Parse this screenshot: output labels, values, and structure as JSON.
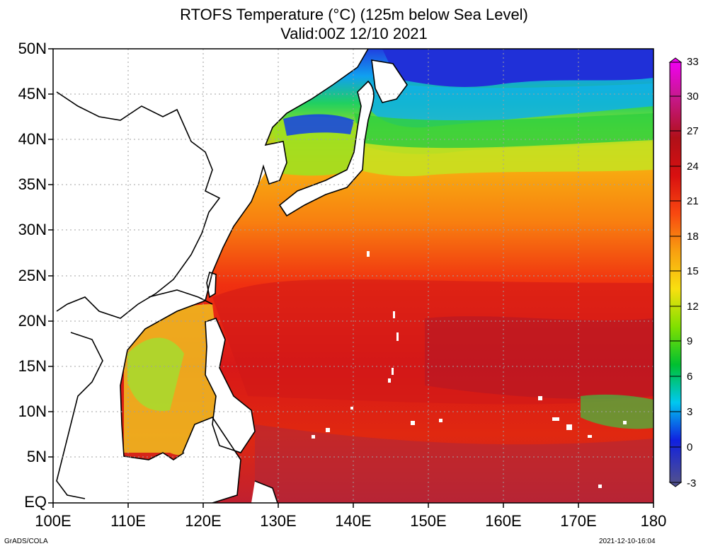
{
  "title_line1": "RTOFS Temperature (°C) (125m below Sea Level)",
  "title_line2": "Valid:00Z 12/10 2021",
  "footer_left": "GrADS/COLA",
  "footer_right": "2021-12-10-16:04",
  "map": {
    "projection": "lat-lon",
    "lon_range": [
      100,
      180
    ],
    "lat_range": [
      0,
      50
    ],
    "grid": true,
    "lat_ticks": [
      "50N",
      "45N",
      "40N",
      "35N",
      "30N",
      "25N",
      "20N",
      "15N",
      "10N",
      "5N",
      "EQ"
    ],
    "lon_ticks": [
      "100E",
      "110E",
      "120E",
      "130E",
      "140E",
      "150E",
      "160E",
      "170E",
      "180"
    ],
    "land_color": "#ffffff",
    "coast_color": "#000000"
  },
  "colorbar": {
    "labels": [
      "33",
      "30",
      "27",
      "24",
      "21",
      "18",
      "15",
      "12",
      "9",
      "6",
      "3",
      "0",
      "-3"
    ],
    "colors": [
      "#f000f0",
      "#c01878",
      "#b01020",
      "#d01010",
      "#f02010",
      "#f88010",
      "#f8c808",
      "#d8e800",
      "#70e000",
      "#00d8c0",
      "#00a0f0",
      "#1020e0",
      "#5050a0"
    ]
  }
}
